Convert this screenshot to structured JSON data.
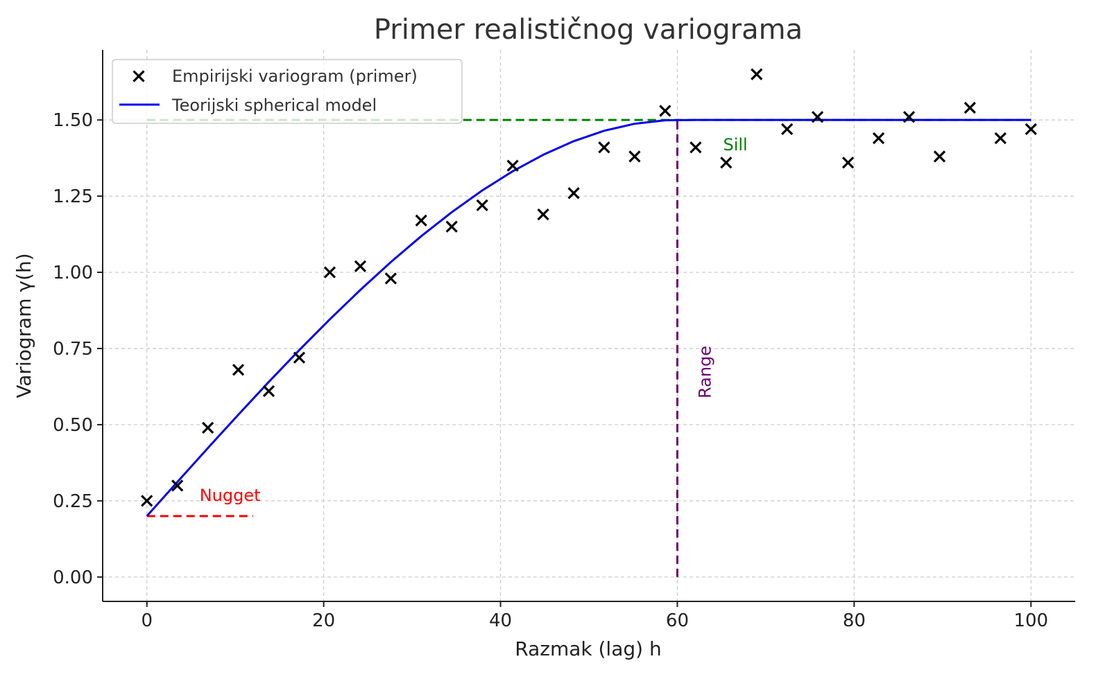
{
  "chart_data": {
    "type": "scatter",
    "title": "Primer realističnog variograma",
    "xlabel": "Razmak (lag) h",
    "ylabel": "Variogram γ(h)",
    "xlim": [
      -5,
      105
    ],
    "ylim": [
      -0.08,
      1.73
    ],
    "x_ticks": [
      0,
      20,
      40,
      60,
      80,
      100
    ],
    "x_tick_labels": [
      "0",
      "20",
      "40",
      "60",
      "80",
      "100"
    ],
    "y_ticks": [
      0,
      0.25,
      0.5,
      0.75,
      1.0,
      1.25,
      1.5
    ],
    "y_tick_labels": [
      "0.00",
      "0.25",
      "0.50",
      "0.75",
      "1.00",
      "1.25",
      "1.50"
    ],
    "grid": true,
    "legend_position": "top-left",
    "series": [
      {
        "name": "Empirijski variogram (primer)",
        "kind": "scatter",
        "marker": "x",
        "color": "#000000",
        "x": [
          0,
          3.45,
          6.9,
          10.34,
          13.79,
          17.24,
          20.69,
          24.14,
          27.59,
          31.03,
          34.48,
          37.93,
          41.38,
          44.83,
          48.28,
          51.72,
          55.17,
          58.62,
          62.07,
          65.52,
          68.97,
          72.41,
          75.86,
          79.31,
          82.76,
          86.21,
          89.66,
          93.1,
          96.55,
          100
        ],
        "y": [
          0.25,
          0.3,
          0.49,
          0.68,
          0.61,
          0.72,
          1.0,
          1.02,
          0.98,
          1.17,
          1.15,
          1.22,
          1.35,
          1.19,
          1.26,
          1.41,
          1.38,
          1.53,
          1.41,
          1.36,
          1.65,
          1.47,
          1.51,
          1.36,
          1.44,
          1.51,
          1.38,
          1.54,
          1.44,
          1.47
        ]
      },
      {
        "name": "Teorijski spherical model",
        "kind": "line",
        "color": "#0000ee",
        "model": "spherical",
        "nugget": 0.2,
        "sill": 1.5,
        "range": 60,
        "x_min": 0,
        "x_max": 100
      }
    ],
    "annotations": {
      "nugget": {
        "text": "Nugget",
        "value": 0.2,
        "x_start": 0,
        "x_end": 12,
        "color": "#ff0000"
      },
      "sill": {
        "text": "Sill",
        "value": 1.5,
        "color": "#008000"
      },
      "range": {
        "text": "Range",
        "value": 60,
        "color": "#6a0070"
      }
    }
  }
}
